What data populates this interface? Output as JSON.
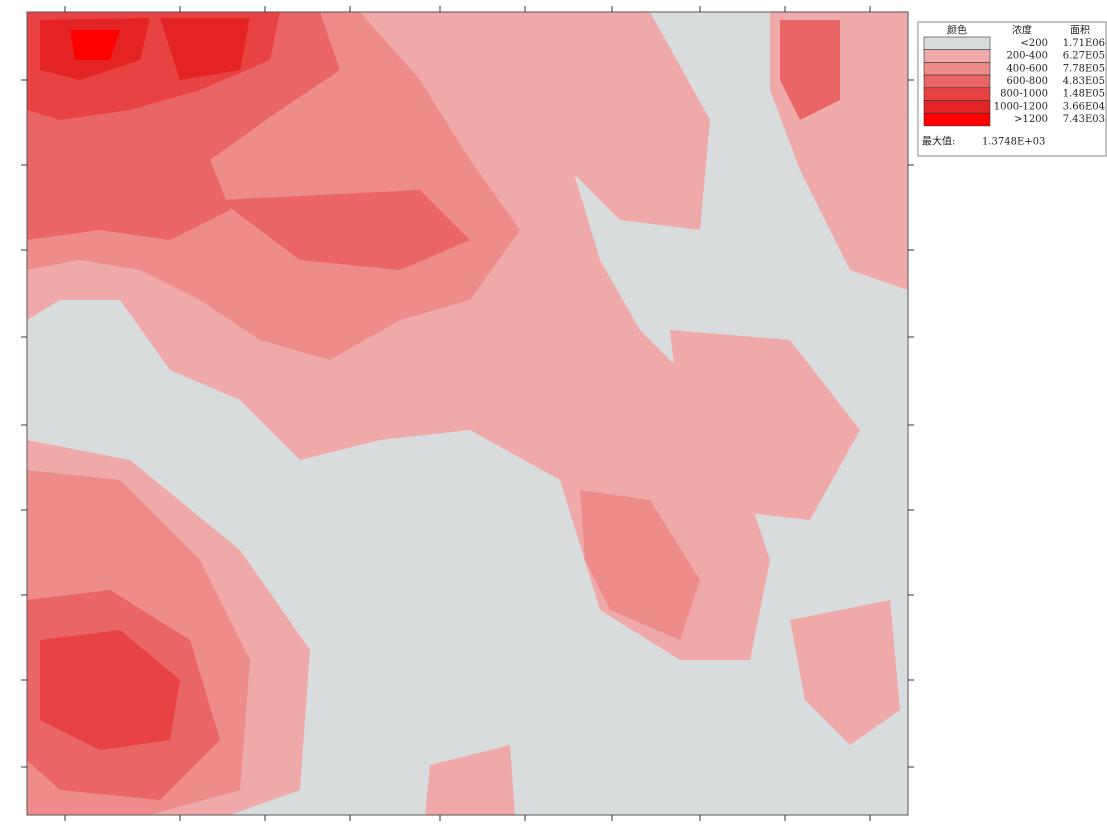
{
  "legend": {
    "headers": [
      "颜色",
      "浓度",
      "面积"
    ],
    "rows": [
      {
        "color": "#d9dcdd",
        "range": "<200",
        "area": "1.71E06"
      },
      {
        "color": "#f0a9a9",
        "range": "200-400",
        "area": "6.27E05"
      },
      {
        "color": "#ee8b8b",
        "range": "400-600",
        "area": "7.78E05"
      },
      {
        "color": "#ea6565",
        "range": "600-800",
        "area": "4.83E05"
      },
      {
        "color": "#e84242",
        "range": "800-1000",
        "area": "1.48E05"
      },
      {
        "color": "#e42424",
        "range": "1000-1200",
        "area": "3.66E04"
      },
      {
        "color": "#ff0000",
        "range": ">1200",
        "area": "7.43E03"
      }
    ],
    "max_label": "最大值:",
    "max_value": "1.3748E+03"
  }
}
